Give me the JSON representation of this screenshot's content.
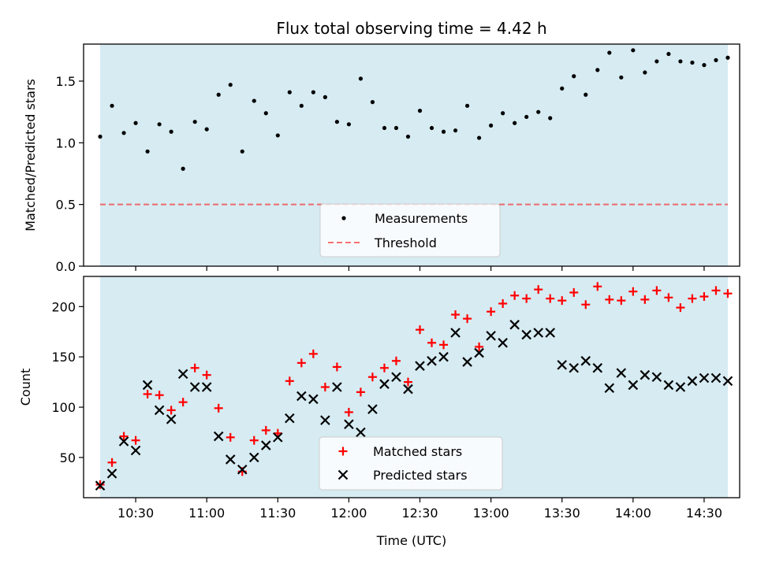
{
  "title": "Flux total observing time = 4.42 h",
  "colors": {
    "span_fill": "#add8e6",
    "threshold": "#ff0000",
    "measurement": "#000000",
    "matched": "#ff0000",
    "predicted": "#000000"
  },
  "chart_data": [
    {
      "type": "scatter",
      "ylabel": "Matched/Predicted stars",
      "xlabel": "",
      "xlim": [
        "10:08",
        "14:45"
      ],
      "ylim": [
        0,
        1.8
      ],
      "yticks": [
        0.0,
        0.5,
        1.0,
        1.5
      ],
      "ytick_labels": [
        "0.0",
        "0.5",
        "1.0",
        "1.5"
      ],
      "span": [
        "10:15",
        "14:40"
      ],
      "threshold": 0.5,
      "legend": {
        "position": "lower center",
        "entries": [
          "Measurements",
          "Threshold"
        ]
      },
      "series": [
        {
          "name": "Measurements",
          "x": [
            "10:15",
            "10:20",
            "10:25",
            "10:30",
            "10:35",
            "10:40",
            "10:45",
            "10:50",
            "10:55",
            "11:00",
            "11:05",
            "11:10",
            "11:15",
            "11:20",
            "11:25",
            "11:30",
            "11:35",
            "11:40",
            "11:45",
            "11:50",
            "11:55",
            "12:00",
            "12:05",
            "12:10",
            "12:15",
            "12:20",
            "12:25",
            "12:30",
            "12:35",
            "12:40",
            "12:45",
            "12:50",
            "12:55",
            "13:00",
            "13:05",
            "13:10",
            "13:15",
            "13:20",
            "13:25",
            "13:30",
            "13:35",
            "13:40",
            "13:45",
            "13:50",
            "13:55",
            "14:00",
            "14:05",
            "14:10",
            "14:15",
            "14:20",
            "14:25",
            "14:30",
            "14:35",
            "14:40"
          ],
          "y": [
            1.05,
            1.3,
            1.08,
            1.16,
            0.93,
            1.15,
            1.09,
            0.79,
            1.17,
            1.11,
            1.39,
            1.47,
            0.93,
            1.34,
            1.24,
            1.06,
            1.41,
            1.3,
            1.41,
            1.37,
            1.17,
            1.15,
            1.52,
            1.33,
            1.12,
            1.12,
            1.05,
            1.26,
            1.12,
            1.09,
            1.1,
            1.3,
            1.04,
            1.14,
            1.24,
            1.16,
            1.21,
            1.25,
            1.2,
            1.44,
            1.54,
            1.39,
            1.59,
            1.73,
            1.53,
            1.75,
            1.57,
            1.66,
            1.72,
            1.66,
            1.65,
            1.63,
            1.67,
            1.69
          ]
        }
      ]
    },
    {
      "type": "scatter",
      "xlabel": "Time (UTC)",
      "ylabel": "Count",
      "xlim": [
        "10:08",
        "14:45"
      ],
      "ylim": [
        10,
        230
      ],
      "xticks": [
        "10:30",
        "11:00",
        "11:30",
        "12:00",
        "12:30",
        "13:00",
        "13:30",
        "14:00",
        "14:30"
      ],
      "yticks": [
        50,
        100,
        150,
        200
      ],
      "ytick_labels": [
        "50",
        "100",
        "150",
        "200"
      ],
      "span": [
        "10:15",
        "14:40"
      ],
      "legend": {
        "position": "lower center",
        "entries": [
          "Matched stars",
          "Predicted stars"
        ]
      },
      "series": [
        {
          "name": "Matched stars",
          "marker": "+",
          "x": [
            "10:15",
            "10:20",
            "10:25",
            "10:30",
            "10:35",
            "10:40",
            "10:45",
            "10:50",
            "10:55",
            "11:00",
            "11:05",
            "11:10",
            "11:15",
            "11:20",
            "11:25",
            "11:30",
            "11:35",
            "11:40",
            "11:45",
            "11:50",
            "11:55",
            "12:00",
            "12:05",
            "12:10",
            "12:15",
            "12:20",
            "12:25",
            "12:30",
            "12:35",
            "12:40",
            "12:45",
            "12:50",
            "12:55",
            "13:00",
            "13:05",
            "13:10",
            "13:15",
            "13:20",
            "13:25",
            "13:30",
            "13:35",
            "13:40",
            "13:45",
            "13:50",
            "13:55",
            "14:00",
            "14:05",
            "14:10",
            "14:15",
            "14:20",
            "14:25",
            "14:30",
            "14:35",
            "14:40"
          ],
          "y": [
            23,
            45,
            71,
            67,
            113,
            112,
            97,
            105,
            139,
            132,
            99,
            70,
            36,
            67,
            77,
            74,
            126,
            144,
            153,
            120,
            140,
            95,
            115,
            130,
            139,
            146,
            125,
            177,
            164,
            162,
            192,
            188,
            160,
            195,
            203,
            211,
            208,
            217,
            208,
            206,
            214,
            202,
            220,
            207,
            206,
            215,
            207,
            216,
            209,
            199,
            208,
            210,
            216,
            213
          ]
        },
        {
          "name": "Predicted stars",
          "marker": "x",
          "x": [
            "10:15",
            "10:20",
            "10:25",
            "10:30",
            "10:35",
            "10:40",
            "10:45",
            "10:50",
            "10:55",
            "11:00",
            "11:05",
            "11:10",
            "11:15",
            "11:20",
            "11:25",
            "11:30",
            "11:35",
            "11:40",
            "11:45",
            "11:50",
            "11:55",
            "12:00",
            "12:05",
            "12:10",
            "12:15",
            "12:20",
            "12:25",
            "12:30",
            "12:35",
            "12:40",
            "12:45",
            "12:50",
            "12:55",
            "13:00",
            "13:05",
            "13:10",
            "13:15",
            "13:20",
            "13:25",
            "13:30",
            "13:35",
            "13:40",
            "13:45",
            "13:50",
            "13:55",
            "14:00",
            "14:05",
            "14:10",
            "14:15",
            "14:20",
            "14:25",
            "14:30",
            "14:35",
            "14:40"
          ],
          "y": [
            22,
            34,
            66,
            57,
            122,
            97,
            88,
            133,
            120,
            120,
            71,
            48,
            38,
            50,
            62,
            70,
            89,
            111,
            108,
            87,
            120,
            83,
            75,
            98,
            123,
            130,
            118,
            141,
            146,
            150,
            174,
            145,
            154,
            171,
            164,
            182,
            172,
            174,
            174,
            142,
            139,
            146,
            139,
            119,
            134,
            122,
            132,
            130,
            122,
            120,
            126,
            129,
            129,
            126
          ]
        }
      ]
    }
  ]
}
